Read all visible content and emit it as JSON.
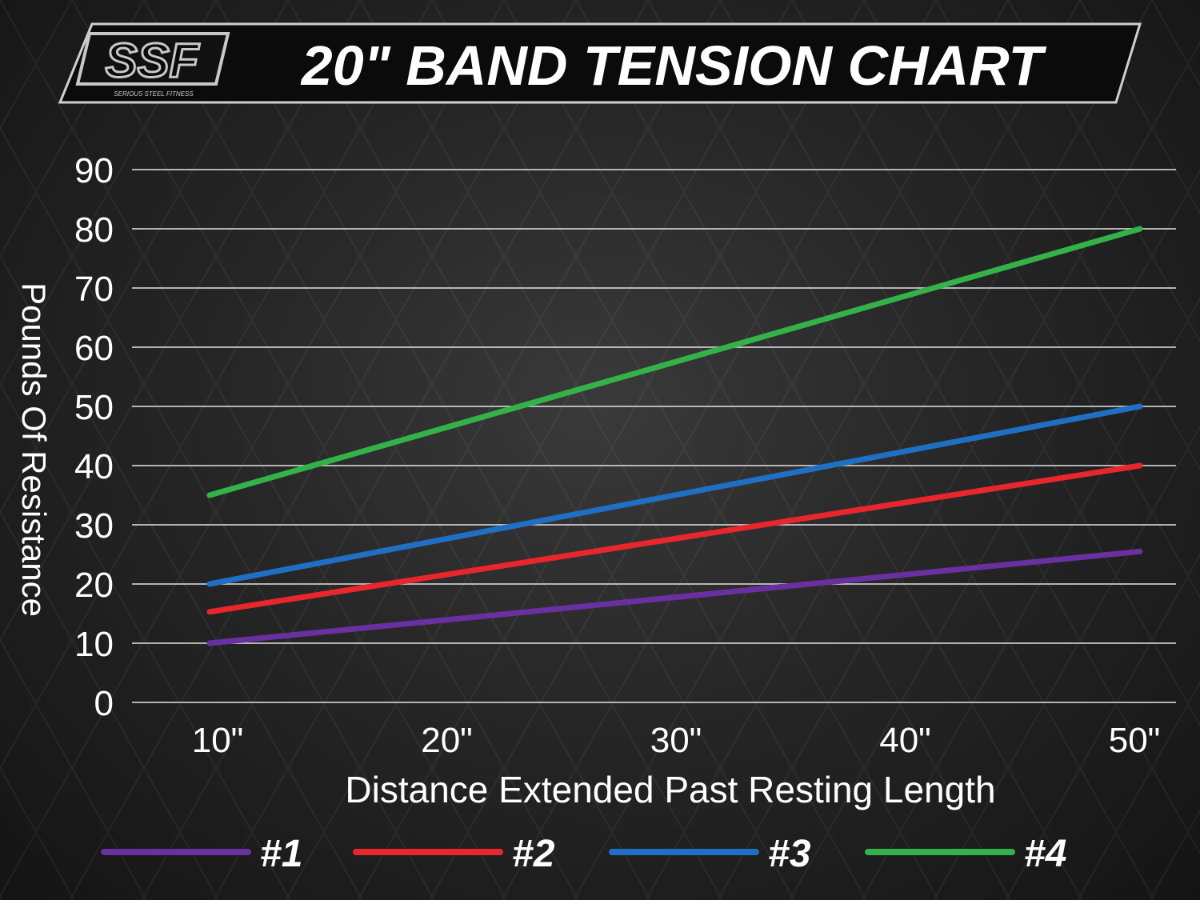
{
  "logo": {
    "text": "SSF",
    "tagline": "SERIOUS STEEL FITNESS"
  },
  "chart_data": {
    "type": "line",
    "title": "20\" BAND TENSION CHART",
    "xlabel": "Distance Extended Past Resting Length",
    "ylabel": "Pounds Of Resistance",
    "x": [
      10,
      50
    ],
    "xticks": [
      10,
      20,
      30,
      40,
      50
    ],
    "xtick_labels": [
      "10\"",
      "20\"",
      "30\"",
      "40\"",
      "50\""
    ],
    "yticks": [
      0,
      10,
      20,
      30,
      40,
      50,
      60,
      70,
      80,
      90
    ],
    "ytick_labels": [
      "0",
      "10",
      "20",
      "30",
      "40",
      "50",
      "60",
      "70",
      "80",
      "90"
    ],
    "xlim": [
      10,
      50
    ],
    "ylim": [
      0,
      90
    ],
    "grid": true,
    "legend_placement": "bottom",
    "series": [
      {
        "name": "#1",
        "color": "#6a2fa0",
        "values": [
          10,
          25.5
        ]
      },
      {
        "name": "#2",
        "color": "#e8262c",
        "values": [
          15.3,
          40
        ]
      },
      {
        "name": "#3",
        "color": "#1f6fc4",
        "values": [
          20,
          50
        ]
      },
      {
        "name": "#4",
        "color": "#33b24a",
        "values": [
          35,
          80
        ]
      }
    ]
  }
}
